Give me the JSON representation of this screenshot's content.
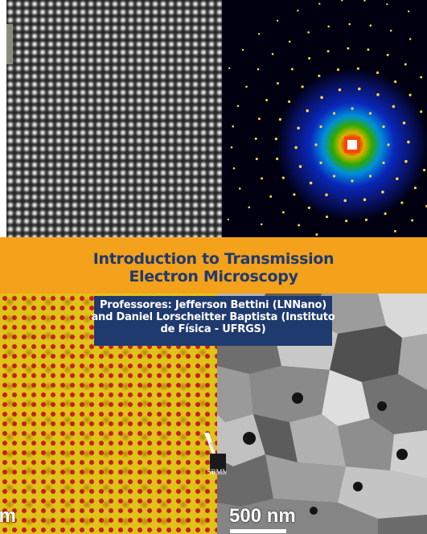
{
  "title": {
    "line1": "Introduction to Transmission",
    "line2": "Electron Microscopy"
  },
  "professors": {
    "line1": "Professores: Jefferson Bettini (LNNano)",
    "line2": "and Daniel Lorscheitter Baptista (Instituto",
    "line3": "de Física - UFRGS)"
  },
  "scale_labels": {
    "left": "nm",
    "right": "500 nm"
  },
  "logo": {
    "text": "SBMM",
    "icon": "sbmm-logo-icon"
  },
  "colors": {
    "banner": "#f4a11c",
    "title_text": "#1f3a6e",
    "prof_box": "#1f3a6e",
    "prof_text": "#ffffff"
  }
}
